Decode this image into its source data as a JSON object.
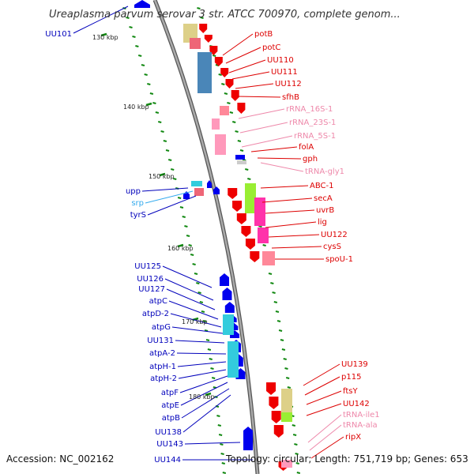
{
  "title": "Ureaplasma parvum serovar 3 str. ATCC 700970, complete genom...",
  "footer": {
    "accession": "Accession: NC_002162",
    "topology": "Topology: circular; Length: 751,719 bp; Genes: 653"
  },
  "ticks": [
    "130 kbp",
    "140 kbp",
    "150 kbp",
    "160 kbp",
    "170 kbp",
    "180 kbp"
  ],
  "labels_right": [
    {
      "text": "potB",
      "color": "#dd0000"
    },
    {
      "text": "potC",
      "color": "#dd0000"
    },
    {
      "text": "UU110",
      "color": "#dd0000"
    },
    {
      "text": "UU111",
      "color": "#dd0000"
    },
    {
      "text": "UU112",
      "color": "#dd0000"
    },
    {
      "text": "sfhB",
      "color": "#dd0000"
    },
    {
      "text": "rRNA_16S-1",
      "color": "#ee88aa"
    },
    {
      "text": "rRNA_23S-1",
      "color": "#ee88aa"
    },
    {
      "text": "rRNA_5S-1",
      "color": "#ee88aa"
    },
    {
      "text": "folA",
      "color": "#dd0000"
    },
    {
      "text": "gph",
      "color": "#dd0000"
    },
    {
      "text": "tRNA-gly1",
      "color": "#ee88aa"
    },
    {
      "text": "ABC-1",
      "color": "#dd0000"
    },
    {
      "text": "secA",
      "color": "#dd0000"
    },
    {
      "text": "uvrB",
      "color": "#dd0000"
    },
    {
      "text": "lig",
      "color": "#dd0000"
    },
    {
      "text": "UU122",
      "color": "#dd0000"
    },
    {
      "text": "cysS",
      "color": "#dd0000"
    },
    {
      "text": "spoU-1",
      "color": "#dd0000"
    },
    {
      "text": "UU139",
      "color": "#dd0000"
    },
    {
      "text": "p115",
      "color": "#dd0000"
    },
    {
      "text": "ftsY",
      "color": "#dd0000"
    },
    {
      "text": "UU142",
      "color": "#dd0000"
    },
    {
      "text": "tRNA-ile1",
      "color": "#ee88aa"
    },
    {
      "text": "tRNA-ala",
      "color": "#ee88aa"
    },
    {
      "text": "ripX",
      "color": "#dd0000"
    }
  ],
  "labels_left": [
    {
      "text": "UU101",
      "color": "#0000bb"
    },
    {
      "text": "upp",
      "color": "#0000bb"
    },
    {
      "text": "srp",
      "color": "#33aaee"
    },
    {
      "text": "tyrS",
      "color": "#0000bb"
    },
    {
      "text": "UU125",
      "color": "#0000bb"
    },
    {
      "text": "UU126",
      "color": "#0000bb"
    },
    {
      "text": "UU127",
      "color": "#0000bb"
    },
    {
      "text": "atpC",
      "color": "#0000bb"
    },
    {
      "text": "atpD-2",
      "color": "#0000bb"
    },
    {
      "text": "atpG",
      "color": "#0000bb"
    },
    {
      "text": "UU131",
      "color": "#0000bb"
    },
    {
      "text": "atpA-2",
      "color": "#0000bb"
    },
    {
      "text": "atpH-1",
      "color": "#0000bb"
    },
    {
      "text": "atpH-2",
      "color": "#0000bb"
    },
    {
      "text": "atpF",
      "color": "#0000bb"
    },
    {
      "text": "atpE",
      "color": "#0000bb"
    },
    {
      "text": "atpB",
      "color": "#0000bb"
    },
    {
      "text": "UU138",
      "color": "#0000bb"
    },
    {
      "text": "UU143",
      "color": "#0000bb"
    },
    {
      "text": "UU144",
      "color": "#0000bb"
    }
  ],
  "colors": {
    "backbone": "#888888",
    "forward_gene": "#ee0000",
    "reverse_gene": "#0000ee",
    "rna": "#ff99bb",
    "cog_blue": "#4a86b8",
    "cog_magenta": "#ff33aa",
    "cog_green": "#99ee33",
    "cog_khaki": "#ddd088",
    "cog_cyan": "#33ccdd",
    "tick_dot": "#118811"
  }
}
